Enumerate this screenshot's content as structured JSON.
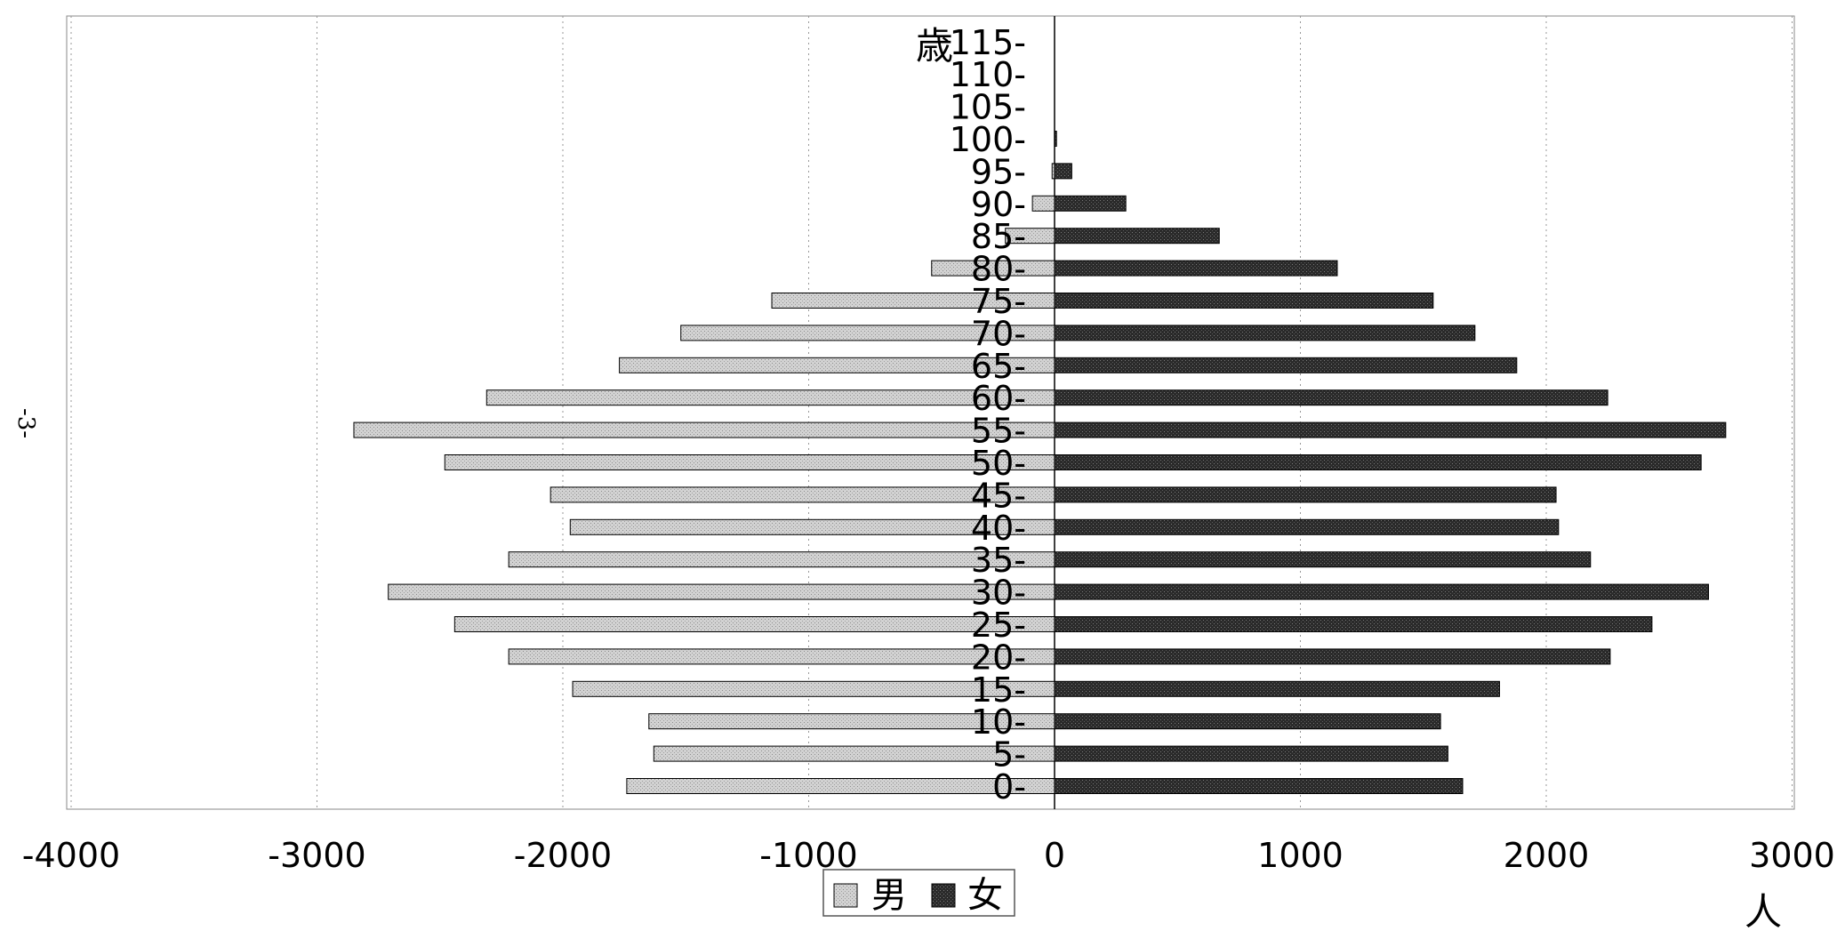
{
  "page": {
    "margin_mark": "-3-"
  },
  "chart_data": {
    "type": "bar",
    "orientation": "horizontal",
    "age_unit_label": "歳",
    "xunit_label": "人",
    "xlim": [
      -4000,
      3000
    ],
    "xticks": [
      -4000,
      -3000,
      -2000,
      -1000,
      0,
      1000,
      2000,
      3000
    ],
    "grid": true,
    "legend_position": "bottom-center",
    "categories": [
      "0-",
      "5-",
      "10-",
      "15-",
      "20-",
      "25-",
      "30-",
      "35-",
      "40-",
      "45-",
      "50-",
      "55-",
      "60-",
      "65-",
      "70-",
      "75-",
      "80-",
      "85-",
      "90-",
      "95-",
      "100-",
      "105-",
      "110-",
      "115-"
    ],
    "series": [
      {
        "name": "男",
        "color": "#c8c8c8",
        "values": [
          -1740,
          -1630,
          -1650,
          -1960,
          -2220,
          -2440,
          -2710,
          -2220,
          -1970,
          -2050,
          -2480,
          -2850,
          -2310,
          -1770,
          -1520,
          -1150,
          -500,
          -200,
          -90,
          -10,
          0,
          0,
          0,
          0
        ]
      },
      {
        "name": "女",
        "color": "#303030",
        "values": [
          1660,
          1600,
          1570,
          1810,
          2260,
          2430,
          2660,
          2180,
          2050,
          2040,
          2630,
          2730,
          2250,
          1880,
          1710,
          1540,
          1150,
          670,
          290,
          70,
          8,
          0,
          0,
          0
        ]
      }
    ]
  }
}
